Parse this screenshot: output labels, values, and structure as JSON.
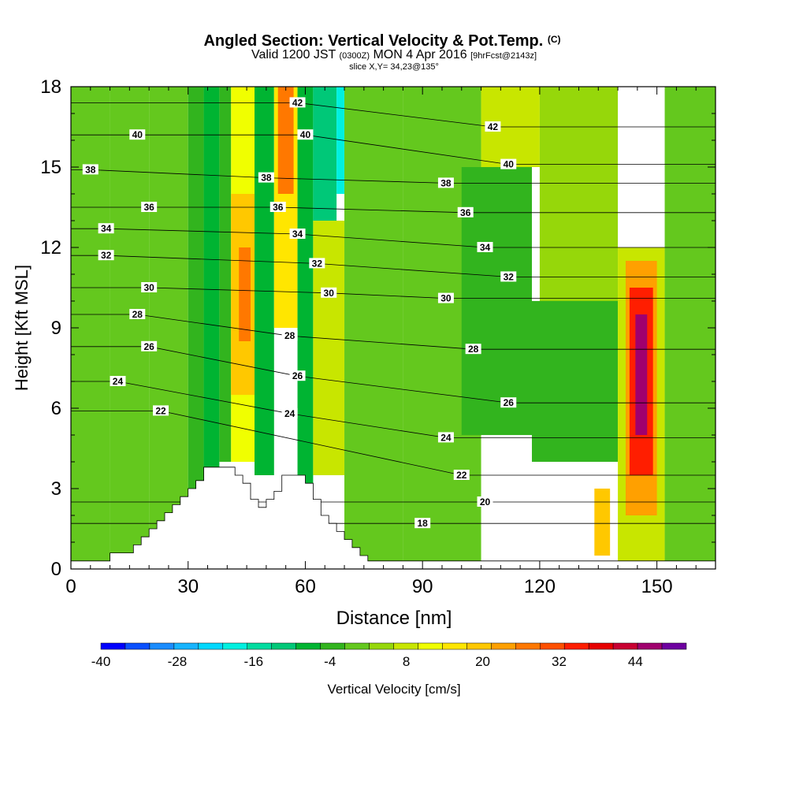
{
  "chart_data": {
    "type": "heatmap",
    "title": "Angled Section: Vertical Velocity & Pot.Temp.",
    "title_units": "(C)",
    "subtitle_parts": [
      "Valid 1200 JST",
      "(0300Z)",
      "MON 4 Apr 2016",
      "[9hrFcst@2143z]"
    ],
    "subtitle2": "slice X,Y= 34,23@135°",
    "xlabel": "Distance [nm]",
    "ylabel": "Height [Kft MSL]",
    "xlim": [
      0,
      165
    ],
    "ylim": [
      0,
      18
    ],
    "xticks": [
      0,
      30,
      60,
      90,
      120,
      150
    ],
    "yticks": [
      0,
      3,
      6,
      9,
      12,
      15,
      18
    ],
    "colorbar": {
      "label": "Vertical Velocity [cm/s]",
      "tick_labels": [
        -40,
        -28,
        -16,
        -4,
        8,
        20,
        32,
        44
      ],
      "bin_edges": [
        -40,
        -36,
        -32,
        -28,
        -24,
        -20,
        -16,
        -12,
        -8,
        -4,
        0,
        4,
        8,
        12,
        16,
        20,
        24,
        28,
        32,
        36,
        40,
        44,
        48,
        52
      ],
      "colors": [
        "#0000ff",
        "#0a50ff",
        "#1a8cff",
        "#17b4ff",
        "#00d8ff",
        "#00f0e0",
        "#00dca0",
        "#00c878",
        "#00b432",
        "#32b41e",
        "#64c81e",
        "#96d70a",
        "#c8e600",
        "#f0ff00",
        "#ffe600",
        "#ffc800",
        "#ffa000",
        "#ff7800",
        "#ff5000",
        "#ff1e00",
        "#e60000",
        "#c80032",
        "#a0006e",
        "#6e00a0"
      ]
    },
    "velocity_cells": [
      {
        "x": [
          0,
          10
        ],
        "y": [
          0,
          18
        ],
        "value": 2
      },
      {
        "x": [
          10,
          20
        ],
        "y": [
          0,
          18
        ],
        "value": 1
      },
      {
        "x": [
          20,
          30
        ],
        "y": [
          0,
          18
        ],
        "value": 0
      },
      {
        "x": [
          30,
          34
        ],
        "y": [
          0,
          18
        ],
        "value": -4
      },
      {
        "x": [
          34,
          38
        ],
        "y": [
          0,
          18
        ],
        "value": -6
      },
      {
        "x": [
          38,
          41
        ],
        "y": [
          4,
          18
        ],
        "value": -2
      },
      {
        "x": [
          41,
          47
        ],
        "y": [
          4,
          18
        ],
        "value": 14
      },
      {
        "x": [
          41,
          47
        ],
        "y": [
          6.5,
          14
        ],
        "value": 22
      },
      {
        "x": [
          43,
          46
        ],
        "y": [
          8.5,
          12
        ],
        "value": 28
      },
      {
        "x": [
          47,
          52
        ],
        "y": [
          3.5,
          18
        ],
        "value": -8
      },
      {
        "x": [
          52,
          58
        ],
        "y": [
          9,
          18
        ],
        "value": 16
      },
      {
        "x": [
          53,
          57
        ],
        "y": [
          14,
          18
        ],
        "value": 30
      },
      {
        "x": [
          58,
          62
        ],
        "y": [
          3,
          18
        ],
        "value": -6
      },
      {
        "x": [
          62,
          70
        ],
        "y": [
          3.5,
          13
        ],
        "value": 8
      },
      {
        "x": [
          62,
          68
        ],
        "y": [
          13,
          18
        ],
        "value": -10
      },
      {
        "x": [
          68,
          72
        ],
        "y": [
          14,
          18
        ],
        "value": -20
      },
      {
        "x": [
          70,
          85
        ],
        "y": [
          0,
          18
        ],
        "value": 0
      },
      {
        "x": [
          85,
          105
        ],
        "y": [
          0,
          18
        ],
        "value": 2
      },
      {
        "x": [
          100,
          118
        ],
        "y": [
          5,
          15
        ],
        "value": -2
      },
      {
        "x": [
          105,
          120
        ],
        "y": [
          15,
          18
        ],
        "value": 8
      },
      {
        "x": [
          118,
          140
        ],
        "y": [
          4,
          10
        ],
        "value": -4
      },
      {
        "x": [
          120,
          140
        ],
        "y": [
          10,
          18
        ],
        "value": 6
      },
      {
        "x": [
          134,
          138
        ],
        "y": [
          0.5,
          3
        ],
        "value": 20
      },
      {
        "x": [
          140,
          152
        ],
        "y": [
          0,
          12
        ],
        "value": 10
      },
      {
        "x": [
          142,
          150
        ],
        "y": [
          2,
          11.5
        ],
        "value": 24
      },
      {
        "x": [
          143,
          149
        ],
        "y": [
          3.5,
          10.5
        ],
        "value": 36
      },
      {
        "x": [
          144.5,
          147.5
        ],
        "y": [
          5,
          9.5
        ],
        "value": 48
      },
      {
        "x": [
          152,
          165
        ],
        "y": [
          0,
          18
        ],
        "value": 2
      }
    ],
    "theta_contour_labels": [
      {
        "text": "42",
        "x": 58,
        "y": 17.4
      },
      {
        "text": "40",
        "x": 17,
        "y": 16.2
      },
      {
        "text": "40",
        "x": 60,
        "y": 16.2
      },
      {
        "text": "42",
        "x": 108,
        "y": 16.5
      },
      {
        "text": "40",
        "x": 112,
        "y": 15.1
      },
      {
        "text": "38",
        "x": 5,
        "y": 14.9
      },
      {
        "text": "38",
        "x": 50,
        "y": 14.6
      },
      {
        "text": "38",
        "x": 96,
        "y": 14.4
      },
      {
        "text": "36",
        "x": 20,
        "y": 13.5
      },
      {
        "text": "36",
        "x": 53,
        "y": 13.5
      },
      {
        "text": "36",
        "x": 101,
        "y": 13.3
      },
      {
        "text": "34",
        "x": 9,
        "y": 12.7
      },
      {
        "text": "34",
        "x": 58,
        "y": 12.5
      },
      {
        "text": "34",
        "x": 106,
        "y": 12.0
      },
      {
        "text": "32",
        "x": 9,
        "y": 11.7
      },
      {
        "text": "32",
        "x": 63,
        "y": 11.4
      },
      {
        "text": "32",
        "x": 112,
        "y": 10.9
      },
      {
        "text": "30",
        "x": 20,
        "y": 10.5
      },
      {
        "text": "30",
        "x": 66,
        "y": 10.3
      },
      {
        "text": "30",
        "x": 96,
        "y": 10.1
      },
      {
        "text": "28",
        "x": 17,
        "y": 9.5
      },
      {
        "text": "28",
        "x": 56,
        "y": 8.7
      },
      {
        "text": "28",
        "x": 103,
        "y": 8.2
      },
      {
        "text": "26",
        "x": 20,
        "y": 8.3
      },
      {
        "text": "26",
        "x": 58,
        "y": 7.2
      },
      {
        "text": "26",
        "x": 112,
        "y": 6.2
      },
      {
        "text": "24",
        "x": 12,
        "y": 7.0
      },
      {
        "text": "24",
        "x": 56,
        "y": 5.8
      },
      {
        "text": "24",
        "x": 96,
        "y": 4.9
      },
      {
        "text": "22",
        "x": 23,
        "y": 5.9
      },
      {
        "text": "22",
        "x": 100,
        "y": 3.5
      },
      {
        "text": "20",
        "x": 106,
        "y": 2.5
      },
      {
        "text": "18",
        "x": 90,
        "y": 1.7
      }
    ],
    "terrain_profile": [
      [
        0,
        0.3
      ],
      [
        10,
        0.3
      ],
      [
        10,
        0.6
      ],
      [
        16,
        0.6
      ],
      [
        16,
        0.9
      ],
      [
        18,
        0.9
      ],
      [
        18,
        1.2
      ],
      [
        20,
        1.2
      ],
      [
        20,
        1.5
      ],
      [
        22,
        1.5
      ],
      [
        22,
        1.8
      ],
      [
        24,
        1.8
      ],
      [
        24,
        2.1
      ],
      [
        26,
        2.1
      ],
      [
        26,
        2.4
      ],
      [
        28,
        2.4
      ],
      [
        28,
        2.7
      ],
      [
        30,
        2.7
      ],
      [
        30,
        3.0
      ],
      [
        32,
        3.0
      ],
      [
        32,
        3.3
      ],
      [
        34,
        3.3
      ],
      [
        34,
        3.8
      ],
      [
        42,
        3.8
      ],
      [
        42,
        3.5
      ],
      [
        44,
        3.5
      ],
      [
        44,
        3.2
      ],
      [
        46,
        3.2
      ],
      [
        46,
        2.6
      ],
      [
        48,
        2.6
      ],
      [
        48,
        2.3
      ],
      [
        50,
        2.3
      ],
      [
        50,
        2.6
      ],
      [
        52,
        2.6
      ],
      [
        52,
        2.9
      ],
      [
        54,
        2.9
      ],
      [
        54,
        3.5
      ],
      [
        60,
        3.5
      ],
      [
        60,
        3.2
      ],
      [
        62,
        3.2
      ],
      [
        62,
        2.6
      ],
      [
        64,
        2.6
      ],
      [
        64,
        2.0
      ],
      [
        66,
        2.0
      ],
      [
        66,
        1.7
      ],
      [
        68,
        1.7
      ],
      [
        68,
        1.4
      ],
      [
        70,
        1.4
      ],
      [
        70,
        1.1
      ],
      [
        72,
        1.1
      ],
      [
        72,
        0.8
      ],
      [
        74,
        0.8
      ],
      [
        74,
        0.5
      ],
      [
        76,
        0.5
      ],
      [
        76,
        0.3
      ],
      [
        165,
        0.3
      ]
    ]
  }
}
